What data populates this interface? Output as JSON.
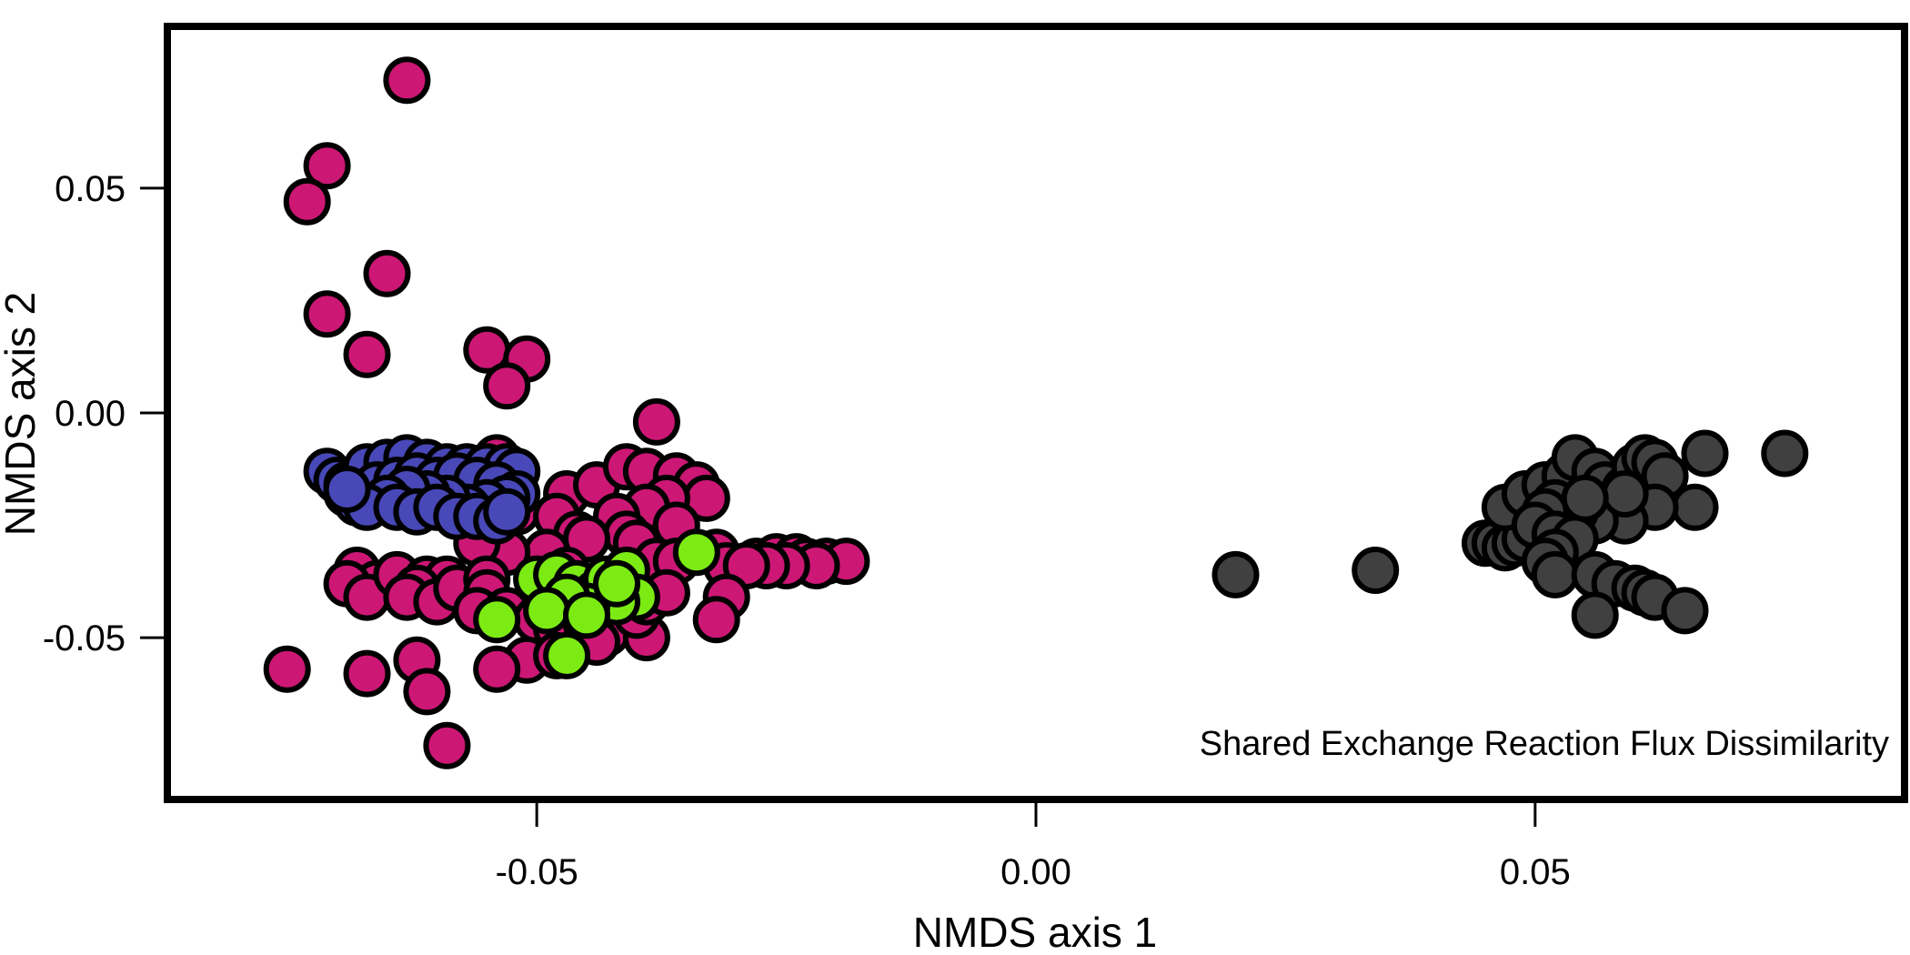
{
  "chart_data": {
    "type": "scatter",
    "title": "",
    "xlabel": "NMDS axis 1",
    "ylabel": "NMDS axis 2",
    "xlim": [
      -0.087,
      0.087
    ],
    "ylim": [
      -0.086,
      0.086
    ],
    "x_ticks": [
      {
        "value": -0.05,
        "label": "-0.05"
      },
      {
        "value": 0.0,
        "label": "0.00"
      },
      {
        "value": 0.05,
        "label": "0.05"
      }
    ],
    "y_ticks": [
      {
        "value": 0.05,
        "label": "0.05"
      },
      {
        "value": 0.0,
        "label": "0.00"
      },
      {
        "value": -0.05,
        "label": "-0.05"
      }
    ],
    "annotation": "Shared Exchange Reaction Flux Dissimilarity",
    "grid": false,
    "legend": "none",
    "series": [
      {
        "color": "#CC1775",
        "points": [
          [
            -0.063,
            0.074
          ],
          [
            -0.071,
            0.055
          ],
          [
            -0.073,
            0.047
          ],
          [
            -0.065,
            0.031
          ],
          [
            -0.071,
            0.022
          ],
          [
            -0.067,
            0.013
          ],
          [
            -0.055,
            0.014
          ],
          [
            -0.051,
            0.012
          ],
          [
            -0.053,
            0.006
          ],
          [
            -0.038,
            -0.002
          ],
          [
            -0.054,
            -0.01
          ],
          [
            -0.057,
            -0.018
          ],
          [
            -0.052,
            -0.022
          ],
          [
            -0.047,
            -0.018
          ],
          [
            -0.044,
            -0.016
          ],
          [
            -0.041,
            -0.012
          ],
          [
            -0.039,
            -0.013
          ],
          [
            -0.036,
            -0.014
          ],
          [
            -0.034,
            -0.016
          ],
          [
            -0.033,
            -0.019
          ],
          [
            -0.037,
            -0.019
          ],
          [
            -0.039,
            -0.021
          ],
          [
            -0.042,
            -0.023
          ],
          [
            -0.048,
            -0.023
          ],
          [
            -0.046,
            -0.027
          ],
          [
            -0.041,
            -0.027
          ],
          [
            -0.036,
            -0.025
          ],
          [
            -0.04,
            -0.029
          ],
          [
            -0.045,
            -0.028
          ],
          [
            -0.049,
            -0.031
          ],
          [
            -0.053,
            -0.031
          ],
          [
            -0.056,
            -0.029
          ],
          [
            -0.038,
            -0.033
          ],
          [
            -0.036,
            -0.033
          ],
          [
            -0.032,
            -0.031
          ],
          [
            -0.031,
            -0.034
          ],
          [
            -0.028,
            -0.033
          ],
          [
            -0.026,
            -0.032
          ],
          [
            -0.024,
            -0.032
          ],
          [
            -0.023,
            -0.033
          ],
          [
            -0.021,
            -0.033
          ],
          [
            -0.019,
            -0.033
          ],
          [
            -0.022,
            -0.034
          ],
          [
            -0.025,
            -0.034
          ],
          [
            -0.027,
            -0.034
          ],
          [
            -0.029,
            -0.034
          ],
          [
            -0.068,
            -0.035
          ],
          [
            -0.066,
            -0.038
          ],
          [
            -0.069,
            -0.038
          ],
          [
            -0.067,
            -0.041
          ],
          [
            -0.064,
            -0.036
          ],
          [
            -0.061,
            -0.037
          ],
          [
            -0.059,
            -0.037
          ],
          [
            -0.062,
            -0.039
          ],
          [
            -0.063,
            -0.041
          ],
          [
            -0.06,
            -0.042
          ],
          [
            -0.058,
            -0.039
          ],
          [
            -0.055,
            -0.037
          ],
          [
            -0.055,
            -0.04
          ],
          [
            -0.056,
            -0.044
          ],
          [
            -0.053,
            -0.044
          ],
          [
            -0.05,
            -0.046
          ],
          [
            -0.048,
            -0.048
          ],
          [
            -0.045,
            -0.047
          ],
          [
            -0.043,
            -0.049
          ],
          [
            -0.044,
            -0.051
          ],
          [
            -0.039,
            -0.05
          ],
          [
            -0.04,
            -0.045
          ],
          [
            -0.039,
            -0.042
          ],
          [
            -0.037,
            -0.04
          ],
          [
            -0.031,
            -0.041
          ],
          [
            -0.032,
            -0.046
          ],
          [
            -0.051,
            -0.055
          ],
          [
            -0.054,
            -0.057
          ],
          [
            -0.048,
            -0.054
          ],
          [
            -0.075,
            -0.057
          ],
          [
            -0.067,
            -0.058
          ],
          [
            -0.062,
            -0.055
          ],
          [
            -0.061,
            -0.062
          ],
          [
            -0.059,
            -0.074
          ],
          [
            -0.047,
            -0.035
          ],
          [
            -0.043,
            -0.038
          ],
          [
            -0.049,
            -0.04
          ]
        ]
      },
      {
        "color": "#4848B8",
        "points": [
          [
            -0.071,
            -0.013
          ],
          [
            -0.07,
            -0.015
          ],
          [
            -0.069,
            -0.018
          ],
          [
            -0.068,
            -0.02
          ],
          [
            -0.069,
            -0.016
          ],
          [
            -0.067,
            -0.012
          ],
          [
            -0.065,
            -0.011
          ],
          [
            -0.063,
            -0.01
          ],
          [
            -0.061,
            -0.011
          ],
          [
            -0.059,
            -0.012
          ],
          [
            -0.057,
            -0.012
          ],
          [
            -0.055,
            -0.012
          ],
          [
            -0.053,
            -0.012
          ],
          [
            -0.052,
            -0.013
          ],
          [
            -0.066,
            -0.016
          ],
          [
            -0.064,
            -0.015
          ],
          [
            -0.062,
            -0.014
          ],
          [
            -0.06,
            -0.015
          ],
          [
            -0.058,
            -0.014
          ],
          [
            -0.056,
            -0.015
          ],
          [
            -0.054,
            -0.016
          ],
          [
            -0.052,
            -0.018
          ],
          [
            -0.053,
            -0.019
          ],
          [
            -0.055,
            -0.02
          ],
          [
            -0.057,
            -0.021
          ],
          [
            -0.059,
            -0.019
          ],
          [
            -0.061,
            -0.018
          ],
          [
            -0.063,
            -0.017
          ],
          [
            -0.065,
            -0.019
          ],
          [
            -0.067,
            -0.021
          ],
          [
            -0.064,
            -0.021
          ],
          [
            -0.062,
            -0.022
          ],
          [
            -0.06,
            -0.021
          ],
          [
            -0.058,
            -0.023
          ],
          [
            -0.056,
            -0.023
          ],
          [
            -0.054,
            -0.024
          ],
          [
            -0.053,
            -0.022
          ],
          [
            -0.069,
            -0.017
          ]
        ]
      },
      {
        "color": "#7CEB14",
        "points": [
          [
            -0.034,
            -0.031
          ],
          [
            -0.05,
            -0.037
          ],
          [
            -0.048,
            -0.036
          ],
          [
            -0.046,
            -0.038
          ],
          [
            -0.044,
            -0.04
          ],
          [
            -0.043,
            -0.037
          ],
          [
            -0.041,
            -0.035
          ],
          [
            -0.04,
            -0.041
          ],
          [
            -0.042,
            -0.042
          ],
          [
            -0.045,
            -0.043
          ],
          [
            -0.047,
            -0.041
          ],
          [
            -0.049,
            -0.044
          ],
          [
            -0.054,
            -0.046
          ],
          [
            -0.047,
            -0.054
          ],
          [
            -0.042,
            -0.038
          ],
          [
            -0.045,
            -0.045
          ]
        ]
      },
      {
        "color": "#404040",
        "points": [
          [
            0.02,
            -0.036
          ],
          [
            0.034,
            -0.035
          ],
          [
            0.045,
            -0.029
          ],
          [
            0.046,
            -0.029
          ],
          [
            0.047,
            -0.03
          ],
          [
            0.048,
            -0.029
          ],
          [
            0.049,
            -0.028
          ],
          [
            0.047,
            -0.021
          ],
          [
            0.049,
            -0.018
          ],
          [
            0.051,
            -0.016
          ],
          [
            0.053,
            -0.014
          ],
          [
            0.054,
            -0.01
          ],
          [
            0.056,
            -0.013
          ],
          [
            0.057,
            -0.016
          ],
          [
            0.059,
            -0.017
          ],
          [
            0.06,
            -0.012
          ],
          [
            0.061,
            -0.01
          ],
          [
            0.062,
            -0.011
          ],
          [
            0.063,
            -0.014
          ],
          [
            0.067,
            -0.009
          ],
          [
            0.075,
            -0.009
          ],
          [
            0.066,
            -0.021
          ],
          [
            0.062,
            -0.021
          ],
          [
            0.059,
            -0.024
          ],
          [
            0.056,
            -0.024
          ],
          [
            0.054,
            -0.022
          ],
          [
            0.052,
            -0.02
          ],
          [
            0.051,
            -0.022
          ],
          [
            0.05,
            -0.025
          ],
          [
            0.052,
            -0.027
          ],
          [
            0.054,
            -0.028
          ],
          [
            0.052,
            -0.031
          ],
          [
            0.051,
            -0.033
          ],
          [
            0.052,
            -0.036
          ],
          [
            0.056,
            -0.036
          ],
          [
            0.058,
            -0.038
          ],
          [
            0.06,
            -0.039
          ],
          [
            0.061,
            -0.04
          ],
          [
            0.062,
            -0.041
          ],
          [
            0.065,
            -0.044
          ],
          [
            0.056,
            -0.045
          ],
          [
            0.059,
            -0.018
          ],
          [
            0.055,
            -0.019
          ]
        ]
      }
    ]
  }
}
